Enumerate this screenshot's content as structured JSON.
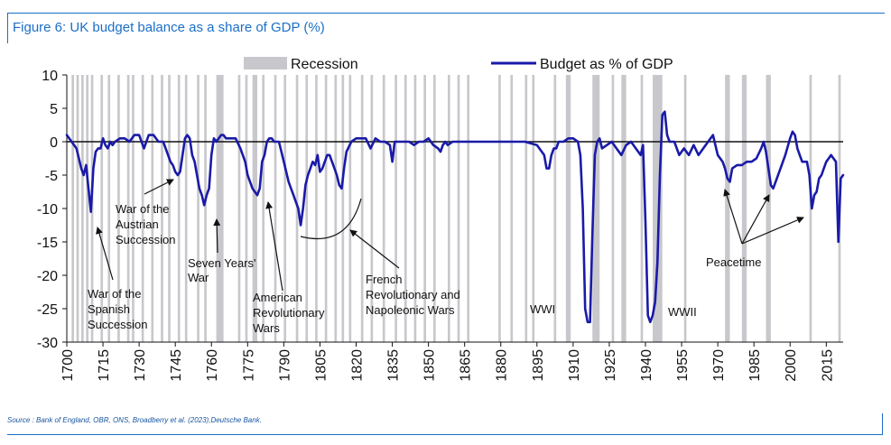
{
  "title": "Figure 6: UK budget balance as a share of GDP (%)",
  "source": "Source : Bank of England, OBR, ONS, Broadberry et al. (2023),Deutsche Bank.",
  "chart_data": {
    "type": "line",
    "xlim": [
      1700,
      2022
    ],
    "ylim": [
      -30,
      10
    ],
    "y_ticks": [
      10,
      5,
      0,
      -5,
      -10,
      -15,
      -20,
      -25,
      -30
    ],
    "x_ticks": [
      1700,
      1715,
      1730,
      1745,
      1760,
      1775,
      1790,
      1805,
      1820,
      1835,
      1850,
      1865,
      1880,
      1895,
      1910,
      1925,
      1940,
      1955,
      1970,
      1985,
      2000,
      2015
    ],
    "zero_line": true,
    "legend": {
      "placement": "top",
      "entries": [
        "Recession",
        "Budget as % of GDP"
      ]
    },
    "colors": {
      "line": "#1a1aa8",
      "recession": "#c8c8cc",
      "title": "#1a6fc7"
    },
    "recessions": [
      [
        1702,
        1703
      ],
      [
        1704,
        1705
      ],
      [
        1706,
        1707
      ],
      [
        1708,
        1709
      ],
      [
        1710,
        1711
      ],
      [
        1714,
        1715
      ],
      [
        1717,
        1718
      ],
      [
        1721,
        1722
      ],
      [
        1725,
        1726
      ],
      [
        1727,
        1728
      ],
      [
        1731,
        1732
      ],
      [
        1735,
        1736
      ],
      [
        1739,
        1740
      ],
      [
        1742,
        1743
      ],
      [
        1746,
        1747
      ],
      [
        1749,
        1750
      ],
      [
        1754,
        1755
      ],
      [
        1757,
        1758
      ],
      [
        1762,
        1765
      ],
      [
        1771,
        1772
      ],
      [
        1774,
        1775
      ],
      [
        1777,
        1779
      ],
      [
        1781,
        1782
      ],
      [
        1786,
        1787
      ],
      [
        1790,
        1791
      ],
      [
        1795,
        1796
      ],
      [
        1799,
        1800
      ],
      [
        1803,
        1804
      ],
      [
        1807,
        1808
      ],
      [
        1811,
        1812
      ],
      [
        1814,
        1815
      ],
      [
        1817,
        1818
      ],
      [
        1822,
        1823
      ],
      [
        1826,
        1827
      ],
      [
        1831,
        1832
      ],
      [
        1836,
        1837
      ],
      [
        1840,
        1841
      ],
      [
        1844,
        1845
      ],
      [
        1848,
        1849
      ],
      [
        1852,
        1853
      ],
      [
        1858,
        1859
      ],
      [
        1862,
        1863
      ],
      [
        1866,
        1867
      ],
      [
        1879,
        1880
      ],
      [
        1884,
        1885
      ],
      [
        1890,
        1891
      ],
      [
        1893,
        1894
      ],
      [
        1902,
        1903
      ],
      [
        1907,
        1909
      ],
      [
        1918,
        1921
      ],
      [
        1926,
        1927
      ],
      [
        1930,
        1932
      ],
      [
        1938,
        1939
      ],
      [
        1943,
        1947
      ],
      [
        1956,
        1957
      ],
      [
        1973,
        1975
      ],
      [
        1980,
        1982
      ],
      [
        1990,
        1992
      ],
      [
        2008,
        2009
      ],
      [
        2020,
        2021
      ]
    ],
    "series": [
      {
        "name": "Budget as % of GDP",
        "x": [
          1700,
          1701,
          1702,
          1703,
          1704,
          1705,
          1706,
          1707,
          1708,
          1709,
          1710,
          1711,
          1712,
          1713,
          1714,
          1715,
          1716,
          1717,
          1718,
          1719,
          1720,
          1722,
          1724,
          1726,
          1728,
          1730,
          1732,
          1734,
          1736,
          1738,
          1740,
          1742,
          1743,
          1744,
          1745,
          1746,
          1747,
          1748,
          1749,
          1750,
          1751,
          1752,
          1753,
          1754,
          1755,
          1756,
          1757,
          1758,
          1759,
          1760,
          1761,
          1762,
          1763,
          1764,
          1765,
          1766,
          1768,
          1770,
          1772,
          1774,
          1775,
          1776,
          1777,
          1778,
          1779,
          1780,
          1781,
          1782,
          1783,
          1784,
          1785,
          1786,
          1788,
          1790,
          1792,
          1793,
          1794,
          1795,
          1796,
          1797,
          1798,
          1799,
          1800,
          1801,
          1802,
          1803,
          1804,
          1805,
          1806,
          1807,
          1808,
          1809,
          1810,
          1811,
          1812,
          1813,
          1814,
          1815,
          1816,
          1818,
          1820,
          1822,
          1824,
          1826,
          1828,
          1830,
          1832,
          1834,
          1835,
          1836,
          1838,
          1840,
          1842,
          1844,
          1846,
          1848,
          1850,
          1852,
          1854,
          1855,
          1856,
          1857,
          1858,
          1860,
          1862,
          1865,
          1870,
          1875,
          1880,
          1885,
          1890,
          1895,
          1898,
          1899,
          1900,
          1901,
          1902,
          1903,
          1904,
          1906,
          1908,
          1910,
          1912,
          1913,
          1914,
          1915,
          1916,
          1917,
          1918,
          1919,
          1920,
          1921,
          1922,
          1924,
          1926,
          1928,
          1930,
          1932,
          1934,
          1936,
          1938,
          1939,
          1940,
          1941,
          1942,
          1943,
          1944,
          1945,
          1946,
          1947,
          1948,
          1949,
          1950,
          1952,
          1954,
          1956,
          1958,
          1960,
          1962,
          1964,
          1966,
          1968,
          1970,
          1972,
          1973,
          1974,
          1975,
          1976,
          1978,
          1980,
          1982,
          1984,
          1986,
          1988,
          1989,
          1990,
          1991,
          1992,
          1993,
          1994,
          1996,
          1998,
          2000,
          2001,
          2002,
          2003,
          2004,
          2005,
          2006,
          2007,
          2008,
          2009,
          2010,
          2011,
          2012,
          2013,
          2014,
          2015,
          2016,
          2017,
          2018,
          2019,
          2020,
          2021,
          2022
        ],
        "y": [
          1,
          0.5,
          0,
          -0.5,
          -1,
          -2.5,
          -4,
          -5,
          -3.5,
          -7,
          -10.5,
          -4,
          -1.5,
          -1,
          -1,
          0.5,
          -0.5,
          -1,
          0,
          -0.5,
          0,
          0.5,
          0.5,
          0,
          1,
          1,
          -1,
          1,
          1,
          0,
          0,
          -2,
          -3,
          -3.5,
          -4.5,
          -5,
          -4.5,
          -2,
          0.5,
          1,
          0.5,
          -2,
          -3,
          -5,
          -7,
          -8,
          -9.5,
          -8,
          -7,
          -2,
          0.5,
          0,
          0.5,
          1,
          1,
          0.5,
          0.5,
          0.5,
          -1,
          -3,
          -5,
          -6,
          -7,
          -7.5,
          -8,
          -7,
          -3,
          -2,
          0,
          0.5,
          0.5,
          0,
          0,
          -3,
          -6,
          -7,
          -8,
          -9,
          -10,
          -12.5,
          -10,
          -6.5,
          -5,
          -4,
          -3,
          -3.5,
          -2,
          -4.5,
          -4,
          -3,
          -2,
          -2,
          -3,
          -4,
          -5,
          -6.5,
          -7,
          -4,
          -1.5,
          0,
          0.5,
          0.5,
          0.5,
          -1,
          0.5,
          0,
          0,
          -0.5,
          -3,
          0,
          0,
          0,
          0,
          -0.5,
          0,
          0,
          0.5,
          -0.5,
          -1,
          -1.5,
          -0.5,
          0,
          -0.5,
          0,
          0,
          0,
          0,
          0,
          0,
          0,
          0,
          -0.5,
          -2,
          -4,
          -4,
          -2,
          -1,
          -1,
          0,
          0,
          0.5,
          0.5,
          0,
          -2,
          -10,
          -25,
          -27,
          -27,
          -14,
          -2,
          0,
          0.5,
          -1,
          -0.5,
          0,
          -1,
          -2,
          -0.5,
          0,
          -1,
          -2,
          -0.5,
          -12,
          -26,
          -27,
          -26,
          -24,
          -18,
          -5,
          4,
          4.5,
          1,
          0,
          0,
          -2,
          -1,
          -2,
          -0.5,
          -2,
          -1,
          0,
          1,
          -2,
          -3,
          -4,
          -5.5,
          -6,
          -4,
          -3.5,
          -3.5,
          -3,
          -3,
          -2.5,
          -1,
          0,
          -1.5,
          -4,
          -6.5,
          -7,
          -6,
          -4,
          -2,
          0.5,
          1.5,
          1,
          -1,
          -2,
          -3,
          -3,
          -3,
          -5,
          -10,
          -8,
          -7.5,
          -5.5,
          -5,
          -4,
          -3,
          -2.5,
          -2,
          -2.5,
          -3,
          -15,
          -5.5,
          -5
        ]
      }
    ]
  },
  "annotations": {
    "spanish": [
      "War of the",
      "Spanish",
      "Succession"
    ],
    "austrian": [
      "War of the",
      "Austrian",
      "Succession"
    ],
    "seven_years": [
      "Seven Years'",
      "War"
    ],
    "american": [
      "American",
      "Revolutionary",
      "Wars"
    ],
    "french": [
      "French",
      "Revolutionary and",
      "Napoleonic Wars"
    ],
    "wwi": "WWI",
    "wwii": "WWII",
    "peacetime": "Peacetime"
  }
}
